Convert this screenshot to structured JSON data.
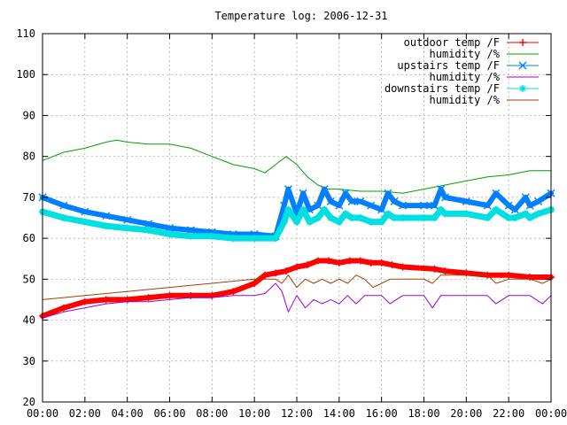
{
  "chart_data": {
    "type": "line",
    "title": "Temperature log: 2006-12-31",
    "xlabel": "",
    "ylabel": "",
    "xlim": [
      0,
      24
    ],
    "ylim": [
      20,
      110
    ],
    "grid": true,
    "legend_position": "top-right",
    "x_ticks": [
      "00:00",
      "02:00",
      "04:00",
      "06:00",
      "08:00",
      "10:00",
      "12:00",
      "14:00",
      "16:00",
      "18:00",
      "20:00",
      "22:00",
      "00:00"
    ],
    "y_ticks": [
      20,
      30,
      40,
      50,
      60,
      70,
      80,
      90,
      100,
      110
    ],
    "series": [
      {
        "name": "outdoor temp /F",
        "color": "#ff0000",
        "marker": "plus",
        "x": [
          0,
          1,
          2,
          3,
          4,
          5,
          6,
          7,
          8,
          9,
          10,
          10.5,
          11,
          11.5,
          12,
          12.5,
          13,
          13.5,
          14,
          14.5,
          15,
          15.5,
          16,
          16.5,
          17,
          18.5,
          19,
          20,
          21,
          22,
          23,
          24
        ],
        "y": [
          41,
          43,
          44.5,
          45,
          45,
          45.5,
          46,
          46,
          46,
          47,
          49,
          51,
          51.5,
          52,
          53,
          53.5,
          54.5,
          54.5,
          54,
          54.5,
          54.5,
          54,
          54,
          53.5,
          53,
          52.5,
          52,
          51.5,
          51,
          51,
          50.5,
          50.5
        ]
      },
      {
        "name": "humidity /%",
        "color": "#00a000",
        "marker": "none",
        "x": [
          0,
          1,
          2,
          3,
          3.5,
          4,
          5,
          6,
          7,
          8,
          9,
          10,
          10.5,
          11,
          11.5,
          12,
          12.5,
          13,
          13.5,
          14,
          15,
          16,
          17,
          18,
          19,
          20,
          21,
          22,
          23,
          24
        ],
        "y": [
          79,
          81,
          82,
          83.5,
          84,
          83.5,
          83,
          83,
          82,
          80,
          78,
          77,
          76,
          78,
          80,
          78,
          75,
          73,
          72,
          72,
          71.5,
          71.5,
          71,
          72,
          73,
          74,
          75,
          75.5,
          76.5,
          76.5
        ]
      },
      {
        "name": "upstairs temp /F",
        "color": "#0080ff",
        "marker": "x",
        "x": [
          0,
          1,
          2,
          3,
          4,
          5,
          6,
          7,
          8,
          9,
          10,
          11,
          11.4,
          11.6,
          12,
          12.3,
          12.6,
          13,
          13.3,
          13.6,
          14,
          14.3,
          14.6,
          15,
          15.5,
          16,
          16.3,
          16.6,
          17,
          18,
          18.5,
          18.8,
          19,
          20,
          21,
          21.4,
          22,
          22.3,
          22.8,
          23,
          23.4,
          24
        ],
        "y": [
          70,
          68,
          66.5,
          65.5,
          64.5,
          63.5,
          62.5,
          62,
          61.5,
          61,
          61,
          60.5,
          68,
          72,
          66,
          71,
          67,
          68,
          72,
          69,
          68,
          71,
          69,
          69,
          68,
          67,
          71,
          69,
          68,
          68,
          68,
          72,
          70,
          69,
          68,
          71,
          68,
          67,
          70,
          68,
          69,
          71
        ]
      },
      {
        "name": "humidity /%",
        "color": "#a000d0",
        "marker": "none",
        "x": [
          0,
          1,
          2,
          3,
          4,
          5,
          6,
          7,
          8,
          9,
          10,
          10.5,
          11,
          11.3,
          11.6,
          12,
          12.4,
          12.8,
          13.2,
          13.6,
          14,
          14.4,
          14.8,
          15.2,
          16,
          16.4,
          17,
          18,
          18.4,
          18.8,
          19,
          20,
          21,
          21.4,
          22,
          22.6,
          23,
          23.6,
          24
        ],
        "y": [
          40.5,
          42,
          43,
          44,
          44.5,
          44.5,
          45,
          45.5,
          45.5,
          46,
          46,
          46.5,
          49,
          47,
          42,
          46,
          43,
          45,
          44,
          45,
          44,
          46,
          44,
          46,
          46,
          44,
          46,
          46,
          43,
          46,
          46,
          46,
          46,
          44,
          46,
          46,
          46,
          44,
          46
        ]
      },
      {
        "name": "downstairs temp /F",
        "color": "#00e0e0",
        "marker": "star",
        "x": [
          0,
          1,
          2,
          3,
          4,
          5,
          6,
          7,
          8,
          9,
          10,
          11,
          11.4,
          11.6,
          12,
          12.3,
          12.6,
          13,
          13.3,
          13.6,
          14,
          14.3,
          14.6,
          15,
          15.5,
          16,
          16.3,
          16.6,
          17,
          18,
          18.5,
          18.8,
          19,
          20,
          21,
          21.4,
          22,
          22.3,
          22.8,
          23,
          23.4,
          24
        ],
        "y": [
          66.5,
          65,
          64,
          63,
          62.5,
          62,
          61,
          60.5,
          60.5,
          60,
          60,
          60,
          64,
          67,
          64,
          67,
          64,
          65,
          67,
          65,
          64,
          66,
          65,
          65,
          64,
          64,
          66,
          65,
          65,
          65,
          65,
          67,
          66,
          66,
          65,
          67,
          65,
          65,
          66,
          65,
          66,
          67
        ]
      },
      {
        "name": "humidity /%",
        "color": "#a04000",
        "marker": "none",
        "x": [
          0,
          1,
          2,
          3,
          4,
          5,
          6,
          7,
          8,
          9,
          10,
          10.5,
          11,
          11.3,
          11.6,
          12,
          12.4,
          12.8,
          13.2,
          13.6,
          14,
          14.4,
          14.8,
          15.2,
          15.6,
          16,
          16.4,
          17,
          18,
          18.4,
          18.8,
          19,
          20,
          21,
          21.4,
          22,
          22.6,
          23,
          23.6,
          24
        ],
        "y": [
          45,
          45.5,
          46,
          46.5,
          47,
          47.5,
          48,
          48.5,
          49,
          49.5,
          50,
          50,
          50,
          49,
          51,
          48,
          50,
          49,
          50,
          49,
          50,
          49,
          51,
          50,
          48,
          49,
          50,
          50,
          50,
          49,
          51,
          51,
          51,
          51,
          49,
          50,
          50,
          50,
          49,
          50
        ]
      }
    ]
  }
}
